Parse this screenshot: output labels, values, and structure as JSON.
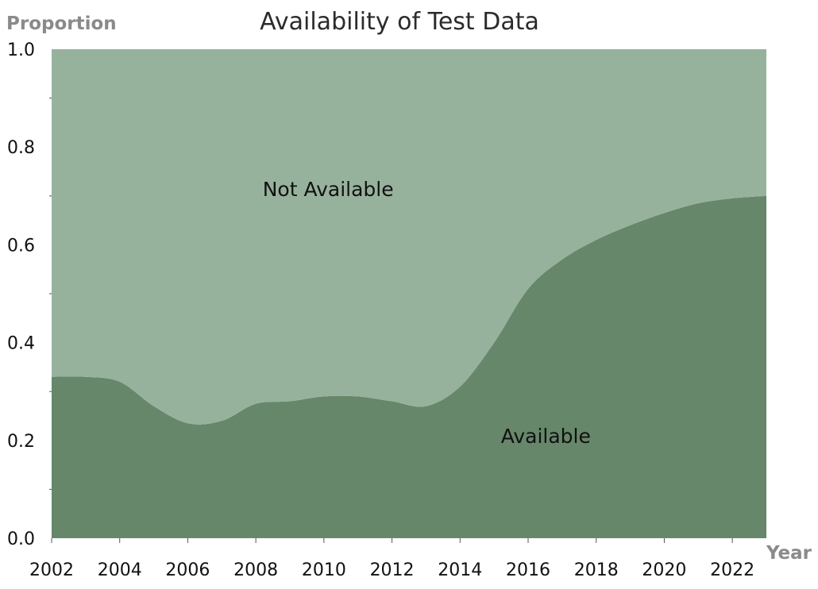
{
  "chart_data": {
    "type": "area",
    "title": "Availability of Test Data",
    "xlabel": "Year",
    "ylabel": "Proportion",
    "xlim": [
      2002,
      2023
    ],
    "ylim": [
      0,
      1
    ],
    "x_ticks": [
      "2002",
      "2004",
      "2006",
      "2008",
      "2010",
      "2012",
      "2014",
      "2016",
      "2018",
      "2020",
      "2022"
    ],
    "y_ticks": [
      "0.0",
      "0.2",
      "0.4",
      "0.6",
      "0.8",
      "1.0"
    ],
    "grid": false,
    "stacked": true,
    "x": [
      2002,
      2003,
      2004,
      2005,
      2006,
      2007,
      2008,
      2009,
      2010,
      2011,
      2012,
      2013,
      2014,
      2015,
      2016,
      2017,
      2018,
      2019,
      2020,
      2021,
      2022,
      2023
    ],
    "series": [
      {
        "name": "Available",
        "color": "#67876a",
        "values": [
          0.33,
          0.33,
          0.32,
          0.27,
          0.235,
          0.24,
          0.275,
          0.28,
          0.29,
          0.29,
          0.28,
          0.27,
          0.31,
          0.4,
          0.51,
          0.57,
          0.61,
          0.64,
          0.665,
          0.685,
          0.695,
          0.7
        ]
      },
      {
        "name": "Not Available",
        "color": "#97b29c",
        "values": [
          0.67,
          0.67,
          0.68,
          0.73,
          0.765,
          0.76,
          0.725,
          0.72,
          0.71,
          0.71,
          0.72,
          0.73,
          0.69,
          0.6,
          0.49,
          0.43,
          0.39,
          0.36,
          0.335,
          0.315,
          0.305,
          0.3
        ]
      }
    ],
    "annotations": [
      {
        "text": "Not Available",
        "x": 2008.2,
        "y": 0.7
      },
      {
        "text": "Available",
        "x": 2015.2,
        "y": 0.195
      }
    ]
  }
}
